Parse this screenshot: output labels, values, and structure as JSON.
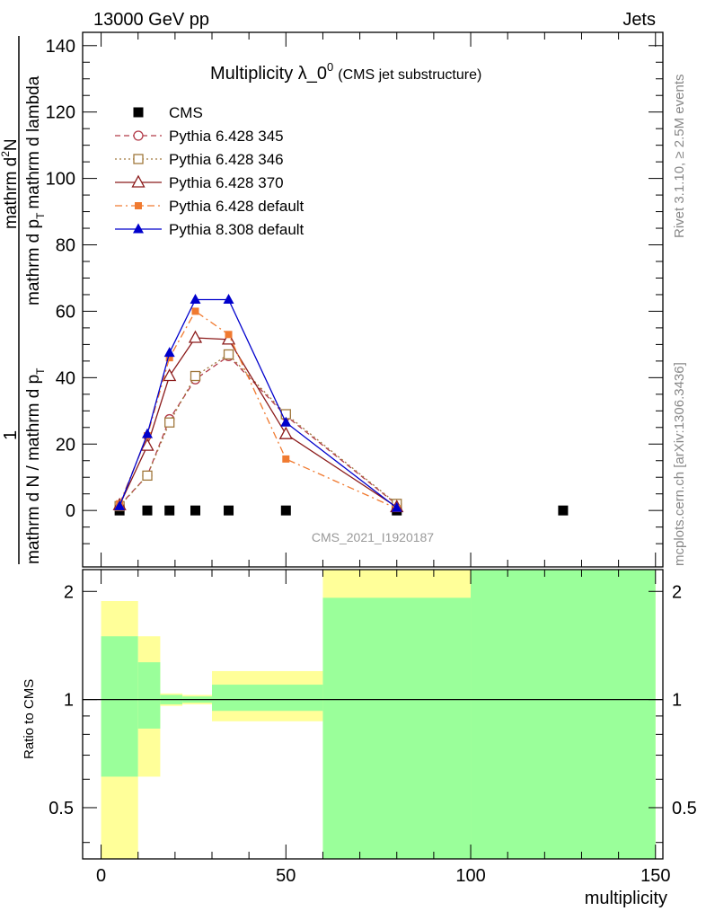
{
  "header": {
    "left": "13000 GeV pp",
    "right": "Jets"
  },
  "side": {
    "rivet": "Rivet 3.1.10, ≥ 2.5M events",
    "mcplots": "mcplots.cern.ch [arXiv:1306.3436]"
  },
  "chart_data": [
    {
      "type": "line",
      "title": "Multiplicity λ_0",
      "title_sup": "0",
      "subtitle": "(CMS jet substructure)",
      "watermark": "CMS_2021_I1920187",
      "ylabel": {
        "numerator": "1",
        "denominator": "mathrm d N / mathrm d p",
        "denominator_sub": "T",
        "denominator_tail": "mathrm d p",
        "denominator_tail_sub": "T",
        "denominator_end": "mathrm d lambda",
        "numerator_top": "mathrm d",
        "numerator_top_sup": "2",
        "numerator_top_end": "N"
      },
      "xlim": [
        -5,
        152
      ],
      "ylim": [
        -17,
        144
      ],
      "yticks": [
        0,
        20,
        40,
        60,
        80,
        100,
        120,
        140
      ],
      "legend_position": "top-left",
      "series": [
        {
          "name": "CMS",
          "color": "#000000",
          "marker": "filled-square",
          "line": "none",
          "x": [
            5,
            12.5,
            18.5,
            25.5,
            34.5,
            50,
            80,
            125
          ],
          "y": [
            0,
            0,
            0,
            0,
            0,
            0,
            0,
            0
          ]
        },
        {
          "name": "Pythia 6.428 345",
          "color": "#b23a48",
          "marker": "open-circle",
          "line": "dashed",
          "x": [
            5,
            12.5,
            18.5,
            25.5,
            34.5,
            50,
            80
          ],
          "y": [
            1.5,
            10.5,
            27.5,
            39.5,
            46.5,
            28.5,
            1.8
          ]
        },
        {
          "name": "Pythia 6.428 346",
          "color": "#a0783c",
          "marker": "open-square",
          "line": "dotted",
          "x": [
            5,
            12.5,
            18.5,
            25.5,
            34.5,
            50,
            80
          ],
          "y": [
            1.3,
            10.5,
            26.5,
            40.5,
            47.0,
            29.0,
            2.0
          ]
        },
        {
          "name": "Pythia 6.428 370",
          "color": "#8b1a1a",
          "marker": "open-triangle",
          "line": "solid",
          "x": [
            5,
            12.5,
            18.5,
            25.5,
            34.5,
            50,
            80
          ],
          "y": [
            1.6,
            19.5,
            40.5,
            52.0,
            51.5,
            23.0,
            1.0
          ]
        },
        {
          "name": "Pythia 6.428 default",
          "color": "#f07a30",
          "marker": "small-filled-square",
          "line": "dashdot",
          "x": [
            5,
            12.5,
            18.5,
            25.5,
            34.5,
            50,
            80
          ],
          "y": [
            2.0,
            22.5,
            46.0,
            60.0,
            53.0,
            15.5,
            0.6
          ]
        },
        {
          "name": "Pythia 8.308 default",
          "color": "#0000cc",
          "marker": "filled-triangle",
          "line": "solid",
          "x": [
            5,
            12.5,
            18.5,
            25.5,
            34.5,
            50,
            80
          ],
          "y": [
            1.3,
            23.0,
            47.5,
            63.5,
            63.5,
            26.5,
            0.8
          ]
        }
      ]
    },
    {
      "type": "area",
      "ylabel": "Ratio to CMS",
      "xlabel": "multiplicity",
      "xlim": [
        -5,
        152
      ],
      "ylim": [
        0.36,
        2.3
      ],
      "scale": "log",
      "yticks": [
        0.5,
        1,
        2
      ],
      "xticks": [
        0,
        50,
        100,
        150
      ],
      "reference_line": 1,
      "bands": [
        {
          "x": [
            0,
            10
          ],
          "green": [
            0.61,
            1.5
          ],
          "yellow": [
            0.36,
            1.88
          ]
        },
        {
          "x": [
            10,
            16
          ],
          "green": [
            0.83,
            1.27
          ],
          "yellow": [
            0.61,
            1.5
          ]
        },
        {
          "x": [
            16,
            22
          ],
          "green": [
            0.97,
            1.03
          ],
          "yellow": [
            0.96,
            1.04
          ]
        },
        {
          "x": [
            22,
            30
          ],
          "green": [
            0.98,
            1.02
          ],
          "yellow": [
            0.97,
            1.03
          ]
        },
        {
          "x": [
            30,
            60
          ],
          "green": [
            0.93,
            1.1
          ],
          "yellow": [
            0.87,
            1.2
          ]
        },
        {
          "x": [
            60,
            100
          ],
          "green": [
            0.36,
            1.92
          ],
          "yellow": [
            0.36,
            2.3
          ]
        },
        {
          "x": [
            100,
            150
          ],
          "green": [
            0.36,
            2.3
          ],
          "yellow": [
            0.36,
            2.3
          ]
        }
      ],
      "colors": {
        "green": "#9aff9a",
        "yellow": "#ffff99"
      }
    }
  ]
}
